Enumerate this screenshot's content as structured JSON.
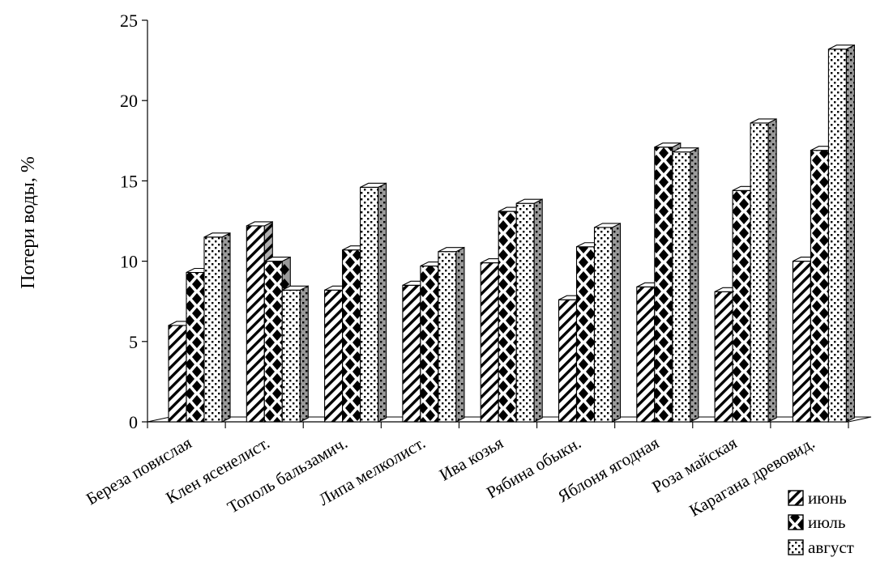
{
  "chart_data": {
    "type": "bar",
    "title": "",
    "xlabel": "",
    "ylabel": "Потери воды, %",
    "ylim": [
      0,
      25
    ],
    "yticks": [
      0,
      5,
      10,
      15,
      20,
      25
    ],
    "grid": false,
    "legend_position": "bottom-right",
    "categories": [
      "Береза повислая",
      "Клен ясенелист.",
      "Тополь бальзамич.",
      "Липа мелколист.",
      "Ива козья",
      "Рябина обыкн.",
      "Яблоня ягодная",
      "Роза майская",
      "Карагана древовид."
    ],
    "series": [
      {
        "name": "июнь",
        "values": [
          6.0,
          12.2,
          8.2,
          8.5,
          9.9,
          7.6,
          8.4,
          8.1,
          10.0
        ]
      },
      {
        "name": "июль",
        "values": [
          9.3,
          10.0,
          10.7,
          9.7,
          13.1,
          10.9,
          17.1,
          14.4,
          16.9
        ]
      },
      {
        "name": "август",
        "values": [
          11.5,
          8.2,
          14.6,
          10.6,
          13.6,
          12.1,
          16.8,
          18.6,
          23.2
        ]
      }
    ]
  }
}
